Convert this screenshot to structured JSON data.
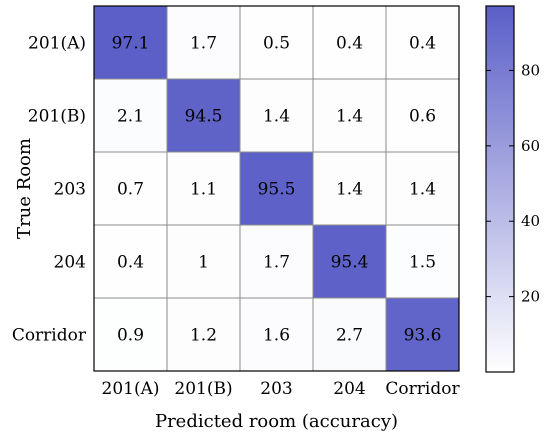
{
  "chart_data": {
    "type": "heatmap",
    "title": "",
    "xlabel": "Predicted room (accuracy)",
    "ylabel": "True Room",
    "x_categories": [
      "201(A)",
      "201(B)",
      "203",
      "204",
      "Corridor"
    ],
    "y_categories": [
      "201(A)",
      "201(B)",
      "203",
      "204",
      "Corridor"
    ],
    "values": [
      [
        97.1,
        1.7,
        0.5,
        0.4,
        0.4
      ],
      [
        2.1,
        94.5,
        1.4,
        1.4,
        0.6
      ],
      [
        0.7,
        1.1,
        95.5,
        1.4,
        1.4
      ],
      [
        0.4,
        1,
        1.7,
        95.4,
        1.5
      ],
      [
        0.9,
        1.2,
        1.6,
        2.7,
        93.6
      ]
    ],
    "value_labels": [
      [
        "97.1",
        "1.7",
        "0.5",
        "0.4",
        "0.4"
      ],
      [
        "2.1",
        "94.5",
        "1.4",
        "1.4",
        "0.6"
      ],
      [
        "0.7",
        "1.1",
        "95.5",
        "1.4",
        "1.4"
      ],
      [
        "0.4",
        "1",
        "1.7",
        "95.4",
        "1.5"
      ],
      [
        "0.9",
        "1.2",
        "1.6",
        "2.7",
        "93.6"
      ]
    ],
    "colorbar": {
      "range": [
        0,
        97.1
      ],
      "ticks": [
        20,
        40,
        60,
        80
      ],
      "tick_labels": [
        "20",
        "40",
        "60",
        "80"
      ]
    },
    "colors": {
      "low": "#ffffff",
      "high": "#5b5fc7",
      "grid": "#8c8c8c",
      "frame": "#000000"
    }
  }
}
